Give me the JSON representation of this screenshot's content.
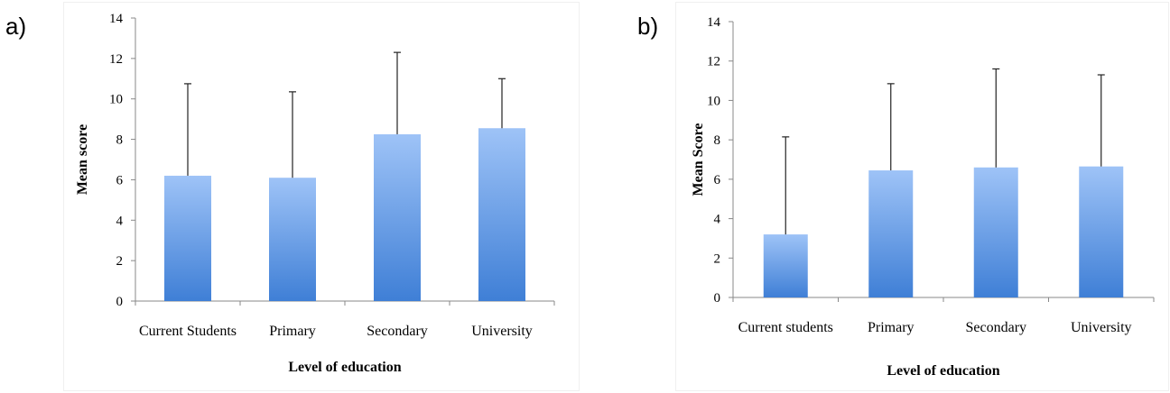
{
  "panels": [
    {
      "letter": "a)"
    },
    {
      "letter": "b)"
    }
  ],
  "chart_data": [
    {
      "type": "bar",
      "categories": [
        "Current Students",
        "Primary",
        "Secondary",
        "University"
      ],
      "values": [
        6.2,
        6.1,
        8.25,
        8.55
      ],
      "error_upper": [
        10.75,
        10.35,
        12.3,
        11.0
      ],
      "xlabel": "Level of education",
      "ylabel": "Mean score",
      "ylim": [
        0,
        14
      ],
      "yticks": [
        "0",
        "2",
        "4",
        "6",
        "8",
        "10",
        "12",
        "14"
      ],
      "grid": false,
      "bar_color_top": "#9ec3f7",
      "bar_color_bottom": "#3f7fd6"
    },
    {
      "type": "bar",
      "categories": [
        "Current students",
        "Primary",
        "Secondary",
        "University"
      ],
      "values": [
        3.2,
        6.45,
        6.6,
        6.65
      ],
      "error_upper": [
        8.15,
        10.85,
        11.6,
        11.3
      ],
      "xlabel": "Level of education",
      "ylabel": "Mean Score",
      "ylim": [
        0,
        14
      ],
      "yticks": [
        "0",
        "2",
        "4",
        "6",
        "8",
        "10",
        "12",
        "14"
      ],
      "grid": false,
      "bar_color_top": "#9ec3f7",
      "bar_color_bottom": "#3f7fd6"
    }
  ]
}
